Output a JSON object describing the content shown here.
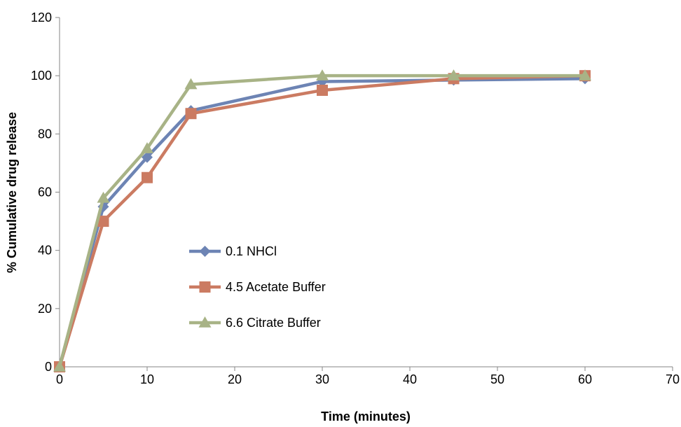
{
  "chart_data": {
    "type": "line",
    "title": "",
    "xlabel": "Time (minutes)",
    "ylabel": "% Cumulative drug release",
    "xlim": [
      0,
      70
    ],
    "ylim": [
      0,
      120
    ],
    "xticks": [
      0,
      10,
      20,
      30,
      40,
      50,
      60,
      70
    ],
    "yticks": [
      0,
      20,
      40,
      60,
      80,
      100,
      120
    ],
    "grid": false,
    "legend_position": "inside-left",
    "x": [
      0,
      5,
      10,
      15,
      30,
      45,
      60
    ],
    "series": [
      {
        "name": "0.1 NHCl",
        "values": [
          0,
          55,
          72,
          88,
          98,
          98.5,
          99
        ],
        "color": "#6D84B4",
        "marker": "diamond"
      },
      {
        "name": "4.5 Acetate Buffer",
        "values": [
          0,
          50,
          65,
          87,
          95,
          99,
          100
        ],
        "color": "#CB7B62",
        "marker": "square"
      },
      {
        "name": "6.6 Citrate Buffer",
        "values": [
          0,
          58,
          75,
          97,
          100,
          100,
          100
        ],
        "color": "#A8B386",
        "marker": "triangle"
      }
    ]
  }
}
